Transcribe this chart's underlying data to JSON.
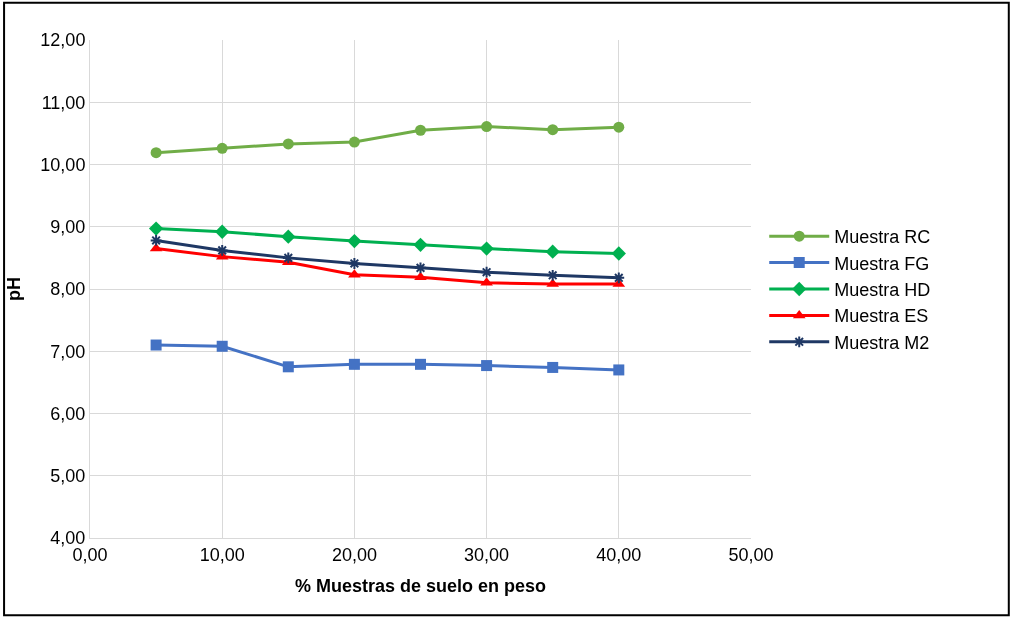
{
  "chart_data": {
    "type": "line",
    "xlabel": "% Muestras de suelo en peso",
    "ylabel": "pH",
    "x": [
      5,
      10,
      15,
      20,
      25,
      30,
      35,
      40
    ],
    "series": [
      {
        "name": "Muestra RC",
        "color": "#70ad47",
        "marker": "circle",
        "values": [
          10.19,
          10.26,
          10.33,
          10.36,
          10.55,
          10.61,
          10.56,
          10.6
        ]
      },
      {
        "name": "Muestra FG",
        "color": "#4472c4",
        "marker": "square",
        "values": [
          7.1,
          7.08,
          6.75,
          6.79,
          6.79,
          6.77,
          6.74,
          6.7
        ]
      },
      {
        "name": "Muestra HD",
        "color": "#00b050",
        "marker": "diamond",
        "values": [
          8.97,
          8.92,
          8.84,
          8.77,
          8.71,
          8.65,
          8.6,
          8.57
        ]
      },
      {
        "name": "Muestra ES",
        "color": "#ff0000",
        "marker": "triangle",
        "values": [
          8.65,
          8.52,
          8.43,
          8.23,
          8.19,
          8.1,
          8.08,
          8.08
        ]
      },
      {
        "name": "Muestra M2",
        "color": "#1f3864",
        "marker": "cross",
        "values": [
          8.78,
          8.62,
          8.5,
          8.41,
          8.34,
          8.27,
          8.22,
          8.18
        ]
      }
    ],
    "xlim": [
      0,
      50
    ],
    "xticks": [
      {
        "value": 0,
        "label": "0,00"
      },
      {
        "value": 10,
        "label": "10,00"
      },
      {
        "value": 20,
        "label": "20,00"
      },
      {
        "value": 30,
        "label": "30,00"
      },
      {
        "value": 40,
        "label": "40,00"
      },
      {
        "value": 50,
        "label": "50,00"
      }
    ],
    "ylim": [
      4,
      12
    ],
    "yticks": [
      {
        "value": 4,
        "label": "4,00"
      },
      {
        "value": 5,
        "label": "5,00"
      },
      {
        "value": 6,
        "label": "6,00"
      },
      {
        "value": 7,
        "label": "7,00"
      },
      {
        "value": 8,
        "label": "8,00"
      },
      {
        "value": 9,
        "label": "9,00"
      },
      {
        "value": 10,
        "label": "10,00"
      },
      {
        "value": 11,
        "label": "11,00"
      },
      {
        "value": 12,
        "label": "12,00"
      }
    ],
    "grid": true,
    "legend": "right",
    "line_style": "solid"
  }
}
